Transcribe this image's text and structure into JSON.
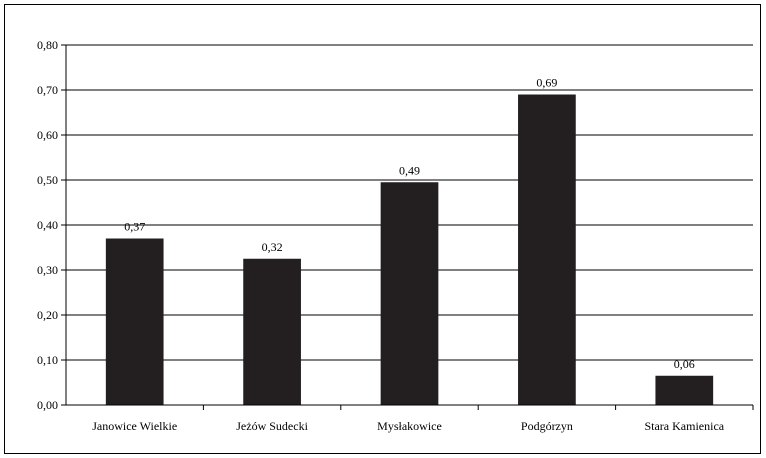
{
  "chart_data": {
    "type": "bar",
    "title": "",
    "xlabel": "",
    "ylabel": "",
    "categories": [
      "Janowice Wielkie",
      "Jeżów Sudecki",
      "Mysłakowice",
      "Podgórzyn",
      "Stara Kamienica"
    ],
    "values": [
      0.37,
      0.325,
      0.495,
      0.69,
      0.065
    ],
    "value_labels": [
      "0,37",
      "0,32",
      "0,49",
      "0,69",
      "0,06"
    ],
    "ylim": [
      0,
      0.8
    ],
    "yticks": [
      0,
      0.1,
      0.2,
      0.3,
      0.4,
      0.5,
      0.6,
      0.7,
      0.8
    ],
    "ytick_labels": [
      "0,00",
      "0,10",
      "0,20",
      "0,30",
      "0,40",
      "0,50",
      "0,60",
      "0,70",
      "0,80"
    ],
    "grid": true,
    "legend": "none",
    "colors": {
      "bar": "#231f20",
      "grid": "#000000",
      "axis": "#000000"
    }
  }
}
